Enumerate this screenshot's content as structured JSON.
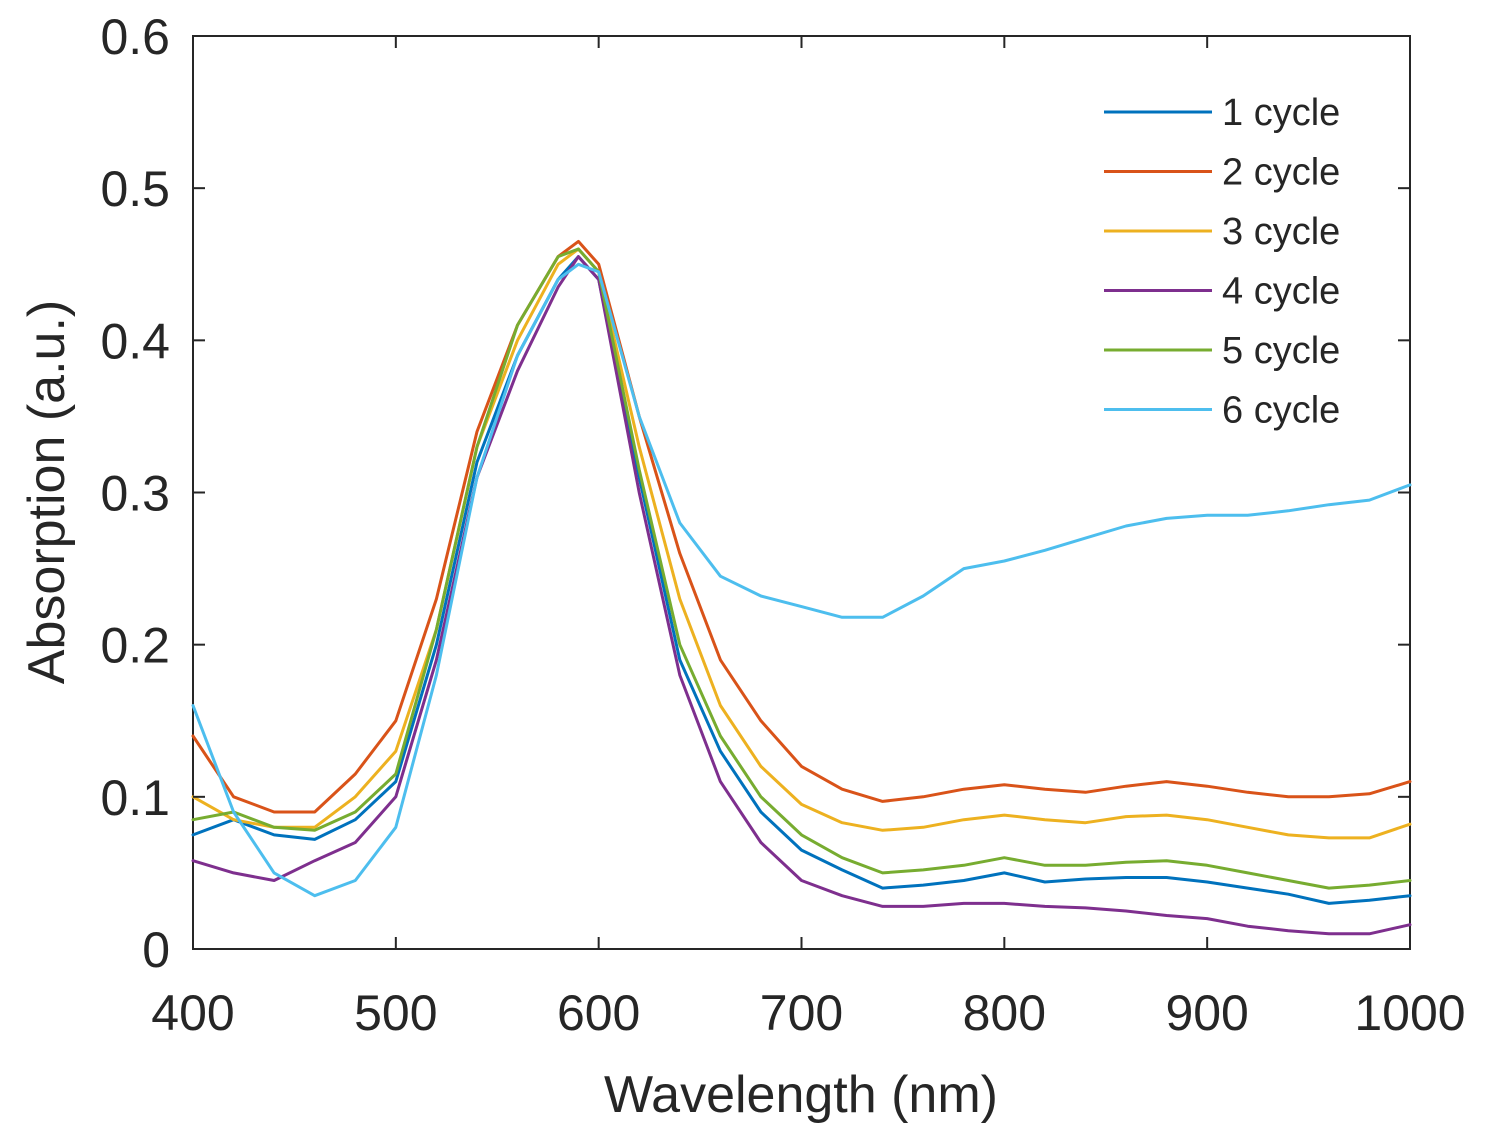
{
  "chart_data": {
    "type": "line",
    "title": "",
    "xlabel": "Wavelength (nm)",
    "ylabel": "Absorption (a.u.)",
    "xlim": [
      400,
      1000
    ],
    "ylim": [
      0,
      0.6
    ],
    "xticks": [
      400,
      500,
      600,
      700,
      800,
      900,
      1000
    ],
    "xtick_labels": [
      "400",
      "500",
      "600",
      "700",
      "800",
      "900",
      "1000"
    ],
    "yticks": [
      0,
      0.1,
      0.2,
      0.3,
      0.4,
      0.5,
      0.6
    ],
    "ytick_labels": [
      "0",
      "0.1",
      "0.2",
      "0.3",
      "0.4",
      "0.5",
      "0.6"
    ],
    "grid": false,
    "legend_position": "top-right",
    "series": [
      {
        "name": "1 cycle",
        "color": "#0072BD",
        "x": [
          400,
          420,
          440,
          460,
          480,
          500,
          520,
          540,
          560,
          580,
          590,
          600,
          620,
          640,
          660,
          680,
          700,
          720,
          740,
          760,
          780,
          800,
          820,
          840,
          860,
          880,
          900,
          920,
          940,
          960,
          980,
          1000
        ],
        "y": [
          0.075,
          0.085,
          0.075,
          0.072,
          0.085,
          0.11,
          0.2,
          0.32,
          0.39,
          0.44,
          0.455,
          0.44,
          0.31,
          0.19,
          0.13,
          0.09,
          0.065,
          0.052,
          0.04,
          0.042,
          0.045,
          0.05,
          0.044,
          0.046,
          0.047,
          0.047,
          0.044,
          0.04,
          0.036,
          0.03,
          0.032,
          0.035
        ]
      },
      {
        "name": "2 cycle",
        "color": "#D95319",
        "x": [
          400,
          420,
          440,
          460,
          480,
          500,
          520,
          540,
          560,
          580,
          590,
          600,
          620,
          640,
          660,
          680,
          700,
          720,
          740,
          760,
          780,
          800,
          820,
          840,
          860,
          880,
          900,
          920,
          940,
          960,
          980,
          1000
        ],
        "y": [
          0.14,
          0.1,
          0.09,
          0.09,
          0.115,
          0.15,
          0.23,
          0.34,
          0.41,
          0.455,
          0.465,
          0.45,
          0.35,
          0.26,
          0.19,
          0.15,
          0.12,
          0.105,
          0.097,
          0.1,
          0.105,
          0.108,
          0.105,
          0.103,
          0.107,
          0.11,
          0.107,
          0.103,
          0.1,
          0.1,
          0.102,
          0.11
        ]
      },
      {
        "name": "3 cycle",
        "color": "#EDB120",
        "x": [
          400,
          420,
          440,
          460,
          480,
          500,
          520,
          540,
          560,
          580,
          590,
          600,
          620,
          640,
          660,
          680,
          700,
          720,
          740,
          760,
          780,
          800,
          820,
          840,
          860,
          880,
          900,
          920,
          940,
          960,
          980,
          1000
        ],
        "y": [
          0.1,
          0.085,
          0.08,
          0.08,
          0.1,
          0.13,
          0.21,
          0.33,
          0.4,
          0.45,
          0.46,
          0.445,
          0.33,
          0.23,
          0.16,
          0.12,
          0.095,
          0.083,
          0.078,
          0.08,
          0.085,
          0.088,
          0.085,
          0.083,
          0.087,
          0.088,
          0.085,
          0.08,
          0.075,
          0.073,
          0.073,
          0.082
        ]
      },
      {
        "name": "4 cycle",
        "color": "#7E2F8E",
        "x": [
          400,
          420,
          440,
          460,
          480,
          500,
          520,
          540,
          560,
          580,
          590,
          600,
          620,
          640,
          660,
          680,
          700,
          720,
          740,
          760,
          780,
          800,
          820,
          840,
          860,
          880,
          900,
          920,
          940,
          960,
          980,
          1000
        ],
        "y": [
          0.058,
          0.05,
          0.045,
          0.058,
          0.07,
          0.1,
          0.19,
          0.31,
          0.38,
          0.435,
          0.455,
          0.44,
          0.3,
          0.18,
          0.11,
          0.07,
          0.045,
          0.035,
          0.028,
          0.028,
          0.03,
          0.03,
          0.028,
          0.027,
          0.025,
          0.022,
          0.02,
          0.015,
          0.012,
          0.01,
          0.01,
          0.016
        ]
      },
      {
        "name": "5 cycle",
        "color": "#77AC30",
        "x": [
          400,
          420,
          440,
          460,
          480,
          500,
          520,
          540,
          560,
          580,
          590,
          600,
          620,
          640,
          660,
          680,
          700,
          720,
          740,
          760,
          780,
          800,
          820,
          840,
          860,
          880,
          900,
          920,
          940,
          960,
          980,
          1000
        ],
        "y": [
          0.085,
          0.09,
          0.08,
          0.078,
          0.09,
          0.115,
          0.21,
          0.33,
          0.41,
          0.455,
          0.46,
          0.445,
          0.315,
          0.2,
          0.14,
          0.1,
          0.075,
          0.06,
          0.05,
          0.052,
          0.055,
          0.06,
          0.055,
          0.055,
          0.057,
          0.058,
          0.055,
          0.05,
          0.045,
          0.04,
          0.042,
          0.045
        ]
      },
      {
        "name": "6 cycle",
        "color": "#4DBEEE",
        "x": [
          400,
          420,
          440,
          460,
          480,
          500,
          520,
          540,
          560,
          580,
          590,
          600,
          620,
          640,
          660,
          680,
          700,
          720,
          740,
          760,
          780,
          800,
          820,
          840,
          860,
          880,
          900,
          920,
          940,
          960,
          980,
          1000
        ],
        "y": [
          0.16,
          0.09,
          0.05,
          0.035,
          0.045,
          0.08,
          0.18,
          0.31,
          0.39,
          0.44,
          0.45,
          0.445,
          0.35,
          0.28,
          0.245,
          0.232,
          0.225,
          0.218,
          0.218,
          0.232,
          0.25,
          0.255,
          0.262,
          0.27,
          0.278,
          0.283,
          0.285,
          0.285,
          0.288,
          0.292,
          0.295,
          0.305
        ]
      }
    ]
  }
}
